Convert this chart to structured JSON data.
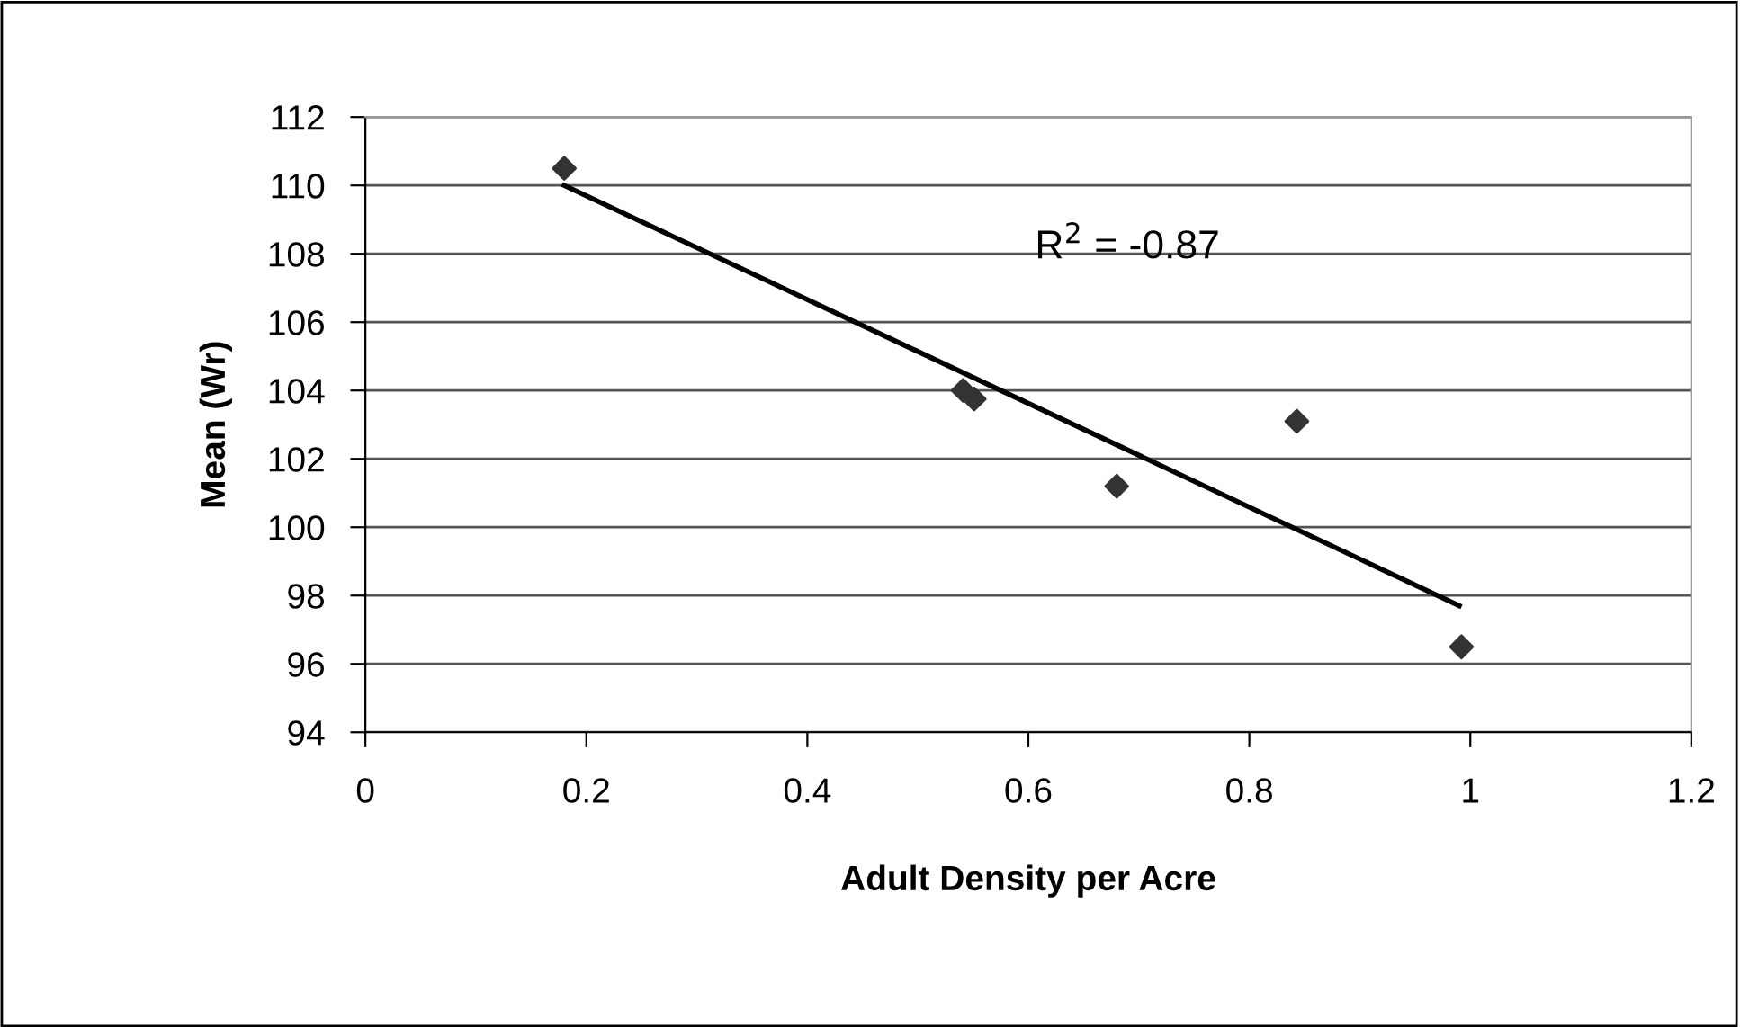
{
  "chart_data": {
    "type": "scatter",
    "xlabel": "Adult Density per Acre",
    "ylabel": "Mean (Wr)",
    "annotations": [
      "R$^{2}$ = -0.87"
    ],
    "series": [
      {
        "color": "#333333",
        "marker": "diamond",
        "x": [
          0.18,
          0.541,
          0.551,
          0.68,
          0.843,
          0.992
        ],
        "values": [
          110.5,
          104.0,
          103.75,
          101.2,
          103.1,
          96.5
        ]
      },
      {
        "type": "line",
        "color": "#000000",
        "marker": "none",
        "line_style": "solid",
        "x": [
          0.18,
          0.99
        ],
        "values": [
          110.0,
          97.7
        ]
      }
    ],
    "xlim": [
      0,
      1.2
    ],
    "xticks": [
      0,
      0.2,
      0.4,
      0.6,
      0.8,
      1,
      1.2
    ],
    "ylim": [
      94,
      112
    ],
    "yticks": [
      94,
      96,
      98,
      100,
      102,
      104,
      106,
      108,
      110,
      112
    ],
    "grid": "y",
    "legend": false
  }
}
